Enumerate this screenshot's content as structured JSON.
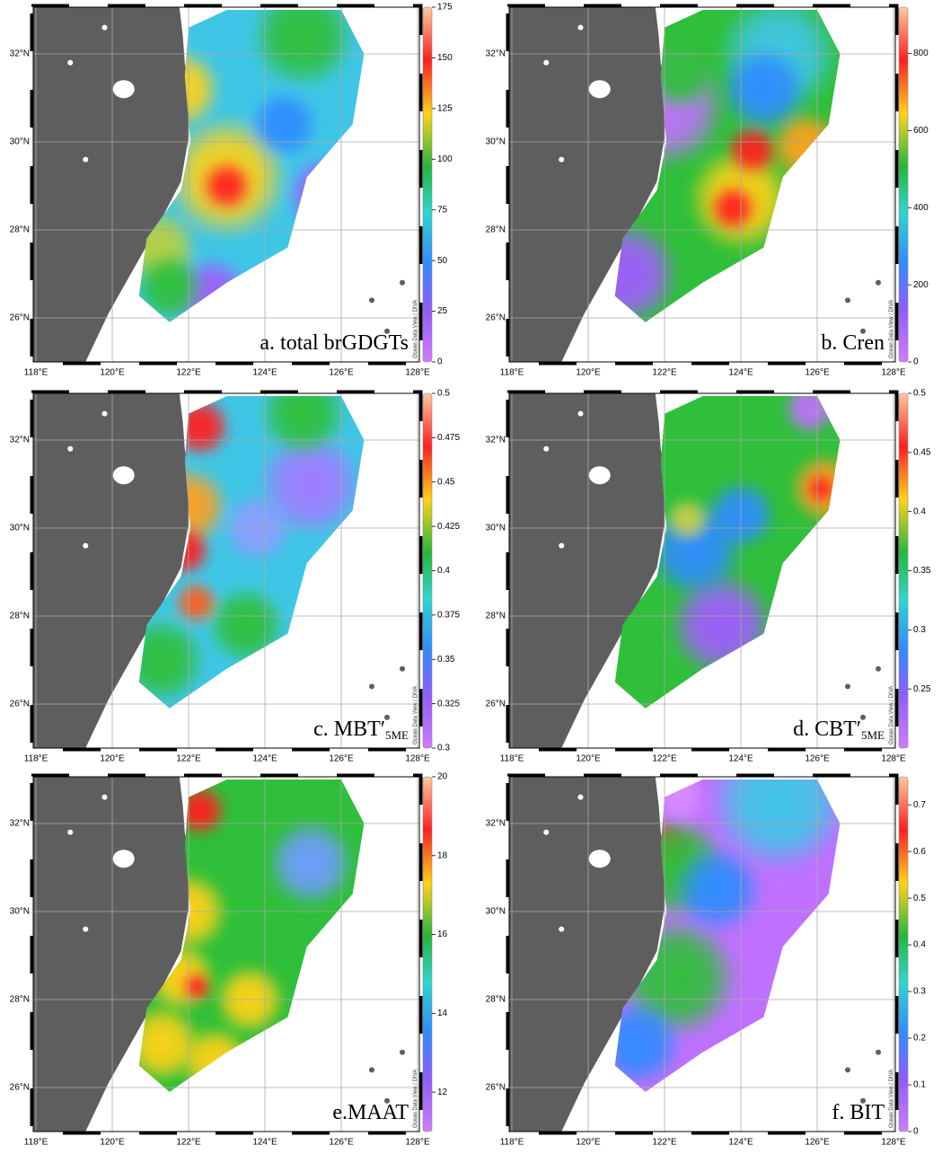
{
  "axes": {
    "lat_labels": [
      "26°N",
      "28°N",
      "30°N",
      "32°N"
    ],
    "lon_labels": [
      "118°E",
      "120°E",
      "122°E",
      "124°E",
      "126°E",
      "128°E"
    ],
    "watermark": "Ocean Data View / DIVA"
  },
  "panels": [
    {
      "label": "a. total brGDGTs",
      "colorbar": {
        "lim": [
          0,
          175
        ],
        "ticks": [
          0,
          25,
          50,
          75,
          100,
          125,
          150,
          175
        ]
      }
    },
    {
      "label": "b. Cren",
      "colorbar": {
        "lim": [
          0,
          920
        ],
        "ticks": [
          0,
          200,
          400,
          600,
          800
        ]
      }
    },
    {
      "label": "c. MBT′",
      "label_subscript": "5ME",
      "colorbar": {
        "lim": [
          0.3,
          0.5
        ],
        "ticks": [
          0.3,
          0.325,
          0.35,
          0.375,
          0.4,
          0.425,
          0.45,
          0.475,
          0.5
        ]
      }
    },
    {
      "label": "d. CBT′",
      "label_subscript": "5ME",
      "colorbar": {
        "lim": [
          0.2,
          0.5
        ],
        "ticks": [
          0.25,
          0.3,
          0.35,
          0.4,
          0.45,
          0.5
        ]
      }
    },
    {
      "label": "e.MAAT",
      "colorbar": {
        "lim": [
          11,
          20
        ],
        "ticks": [
          12,
          14,
          16,
          18,
          20
        ]
      }
    },
    {
      "label": "f. BIT",
      "colorbar": {
        "lim": [
          0,
          0.76
        ],
        "ticks": [
          0,
          0.1,
          0.2,
          0.3,
          0.4,
          0.5,
          0.6,
          0.7
        ]
      }
    }
  ]
}
